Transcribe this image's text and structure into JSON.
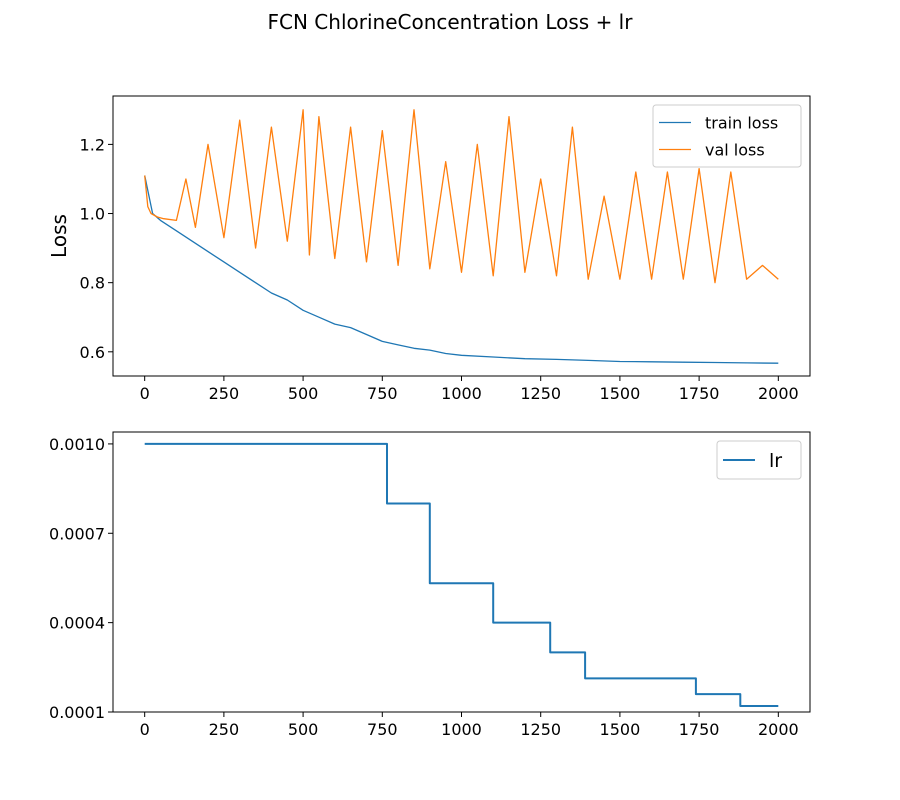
{
  "figure": {
    "title": "FCN ChlorineConcentration Loss + lr"
  },
  "chart_data": [
    {
      "type": "line",
      "ylabel": "Loss",
      "xlabel": "",
      "xlim": [
        -100,
        2100
      ],
      "ylim": [
        0.53,
        1.34
      ],
      "xticks": [
        0,
        250,
        500,
        750,
        1000,
        1250,
        1500,
        1750,
        2000
      ],
      "xtick_labels": [
        "0",
        "250",
        "500",
        "750",
        "1000",
        "1250",
        "1500",
        "1750",
        "2000"
      ],
      "yticks": [
        0.6,
        0.8,
        1.0,
        1.2
      ],
      "ytick_labels": [
        "0.6",
        "0.8",
        "1.0",
        "1.2"
      ],
      "legend_position": "top-right",
      "series": [
        {
          "name": "train loss",
          "color": "#1f77b4",
          "x": [
            0,
            25,
            50,
            100,
            150,
            200,
            250,
            300,
            350,
            400,
            450,
            500,
            550,
            600,
            650,
            700,
            750,
            800,
            850,
            900,
            950,
            1000,
            1100,
            1200,
            1300,
            1400,
            1500,
            1600,
            1700,
            1800,
            1900,
            2000
          ],
          "y": [
            1.11,
            1.0,
            0.98,
            0.95,
            0.92,
            0.89,
            0.86,
            0.83,
            0.8,
            0.77,
            0.75,
            0.72,
            0.7,
            0.68,
            0.67,
            0.65,
            0.63,
            0.62,
            0.61,
            0.605,
            0.595,
            0.59,
            0.585,
            0.58,
            0.578,
            0.575,
            0.572,
            0.571,
            0.57,
            0.569,
            0.568,
            0.567
          ]
        },
        {
          "name": "val loss",
          "color": "#ff7f0e",
          "x": [
            0,
            10,
            20,
            40,
            60,
            100,
            130,
            160,
            200,
            250,
            300,
            350,
            400,
            450,
            500,
            520,
            550,
            600,
            650,
            700,
            750,
            800,
            850,
            900,
            950,
            1000,
            1050,
            1100,
            1150,
            1200,
            1250,
            1300,
            1350,
            1400,
            1450,
            1500,
            1550,
            1600,
            1650,
            1700,
            1750,
            1800,
            1850,
            1900,
            1950,
            2000
          ],
          "y": [
            1.11,
            1.02,
            1.0,
            0.99,
            0.985,
            0.98,
            1.1,
            0.96,
            1.2,
            0.93,
            1.27,
            0.9,
            1.25,
            0.92,
            1.3,
            0.88,
            1.28,
            0.87,
            1.25,
            0.86,
            1.24,
            0.85,
            1.3,
            0.84,
            1.15,
            0.83,
            1.2,
            0.82,
            1.28,
            0.83,
            1.1,
            0.82,
            1.25,
            0.81,
            1.05,
            0.81,
            1.12,
            0.81,
            1.12,
            0.81,
            1.13,
            0.8,
            1.12,
            0.81,
            0.85,
            0.81
          ]
        }
      ]
    },
    {
      "type": "line",
      "xlabel": "",
      "ylabel": "",
      "xlim": [
        -100,
        2100
      ],
      "ylim": [
        0.0001,
        0.00104
      ],
      "xticks": [
        0,
        250,
        500,
        750,
        1000,
        1250,
        1500,
        1750,
        2000
      ],
      "xtick_labels": [
        "0",
        "250",
        "500",
        "750",
        "1000",
        "1250",
        "1500",
        "1750",
        "2000"
      ],
      "yticks": [
        0.0001,
        0.0004,
        0.0007,
        0.001
      ],
      "ytick_labels": [
        "0.0001",
        "0.0004",
        "0.0007",
        "0.0010"
      ],
      "legend_position": "top-right",
      "series": [
        {
          "name": "lr",
          "color": "#1f77b4",
          "step": true,
          "x": [
            0,
            765,
            900,
            1100,
            1280,
            1390,
            1740,
            1880,
            2000
          ],
          "y": [
            0.001,
            0.0008,
            0.000532,
            0.0004,
            0.0003,
            0.0002128,
            0.00016,
            0.00012,
            0.00012
          ]
        }
      ]
    }
  ]
}
